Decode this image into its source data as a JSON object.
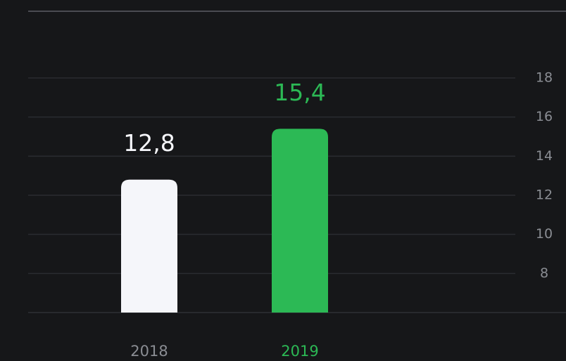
{
  "chart_data": {
    "type": "bar",
    "categories": [
      "2018",
      "2019"
    ],
    "values": [
      12.8,
      15.4
    ],
    "value_labels": [
      "12,8",
      "15,4"
    ],
    "colors": [
      "#f5f6fa",
      "#2cb955"
    ],
    "ylim": [
      6,
      18
    ],
    "yticks": [
      8,
      10,
      12,
      14,
      16,
      18
    ],
    "grid": true
  }
}
